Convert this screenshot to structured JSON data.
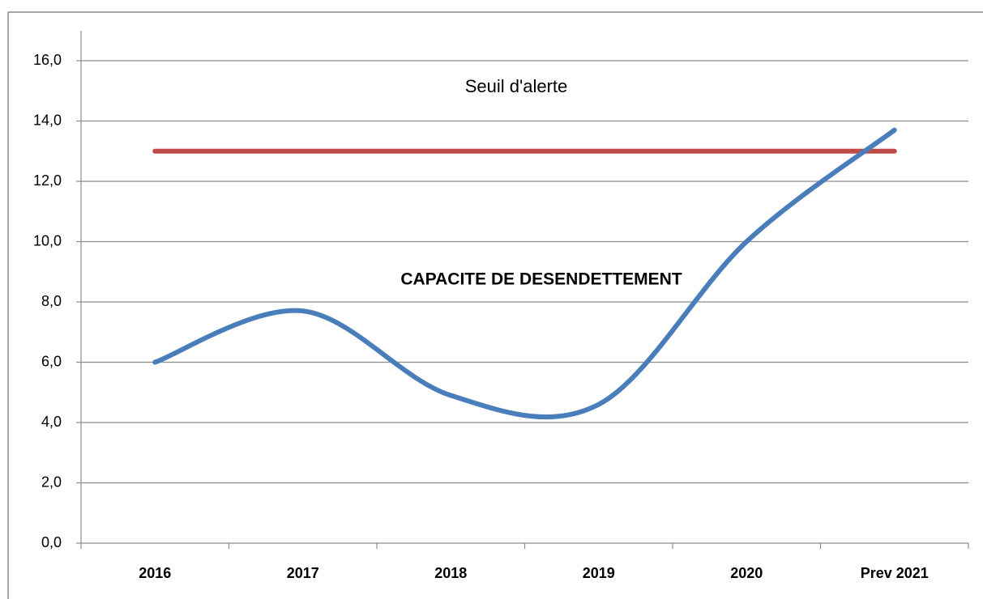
{
  "chart_data": {
    "type": "line",
    "categories": [
      "2016",
      "2017",
      "2018",
      "2019",
      "2020",
      "Prev 2021"
    ],
    "series": [
      {
        "name": "CAPACITE DE DESENDETTEMENT",
        "color": "#4a7ebb",
        "values": [
          6.0,
          7.7,
          4.9,
          4.6,
          10.0,
          13.7
        ]
      },
      {
        "name": "Seuil d'alerte",
        "color": "#be4b48",
        "values": [
          13.0,
          13.0,
          13.0,
          13.0,
          13.0,
          13.0
        ]
      }
    ],
    "ylim": [
      0,
      16
    ],
    "yticks": [
      {
        "value": 0,
        "label": "0,0"
      },
      {
        "value": 2,
        "label": "2,0"
      },
      {
        "value": 4,
        "label": "4,0"
      },
      {
        "value": 6,
        "label": "6,0"
      },
      {
        "value": 8,
        "label": "8,0"
      },
      {
        "value": 10,
        "label": "10,0"
      },
      {
        "value": 12,
        "label": "12,0"
      },
      {
        "value": 14,
        "label": "14,0"
      },
      {
        "value": 16,
        "label": "16,0"
      }
    ],
    "grid": true
  }
}
